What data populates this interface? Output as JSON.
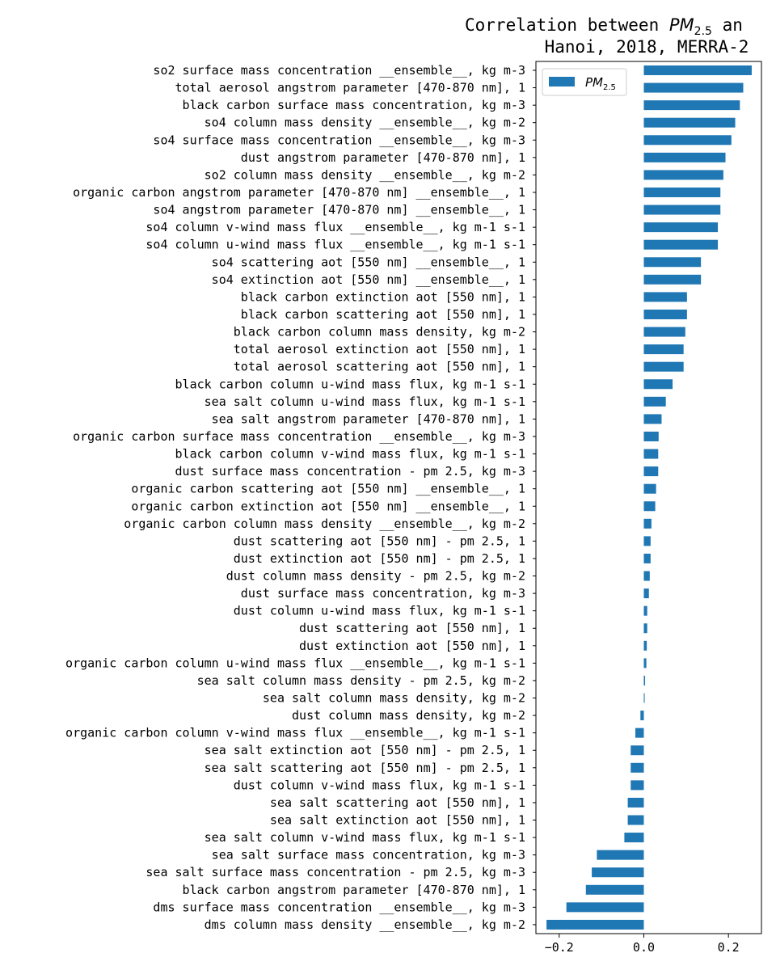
{
  "chart_data": {
    "type": "bar",
    "orientation": "horizontal",
    "title": {
      "line1_prefix": "Correlation between ",
      "line1_var": "PM",
      "line1_sub": "2.5",
      "line1_suffix": " an",
      "line2": "Hanoi, 2018, MERRA-2"
    },
    "xlabel": "",
    "ylabel": "",
    "xlim": [
      -0.255,
      0.278
    ],
    "x_ticks": [
      {
        "value": -0.2,
        "label": "−0.2"
      },
      {
        "value": 0.0,
        "label": "0.0"
      },
      {
        "value": 0.2,
        "label": "0.2"
      }
    ],
    "grid": false,
    "legend": {
      "position": "top-left-of-axes",
      "entries": [
        {
          "var": "PM",
          "sub": "2.5"
        }
      ]
    },
    "colors": {
      "bar": "#1f77b4"
    },
    "categories": [
      "so2 surface mass concentration __ensemble__, kg m-3",
      "total aerosol angstrom parameter [470-870 nm], 1",
      "black carbon surface mass concentration, kg m-3",
      "so4 column mass density __ensemble__, kg m-2",
      "so4 surface mass concentration __ensemble__, kg m-3",
      "dust angstrom parameter [470-870 nm], 1",
      "so2 column mass density __ensemble__, kg m-2",
      "organic carbon angstrom parameter [470-870 nm] __ensemble__, 1",
      "so4 angstrom parameter [470-870 nm] __ensemble__, 1",
      "so4 column v-wind mass flux __ensemble__, kg m-1 s-1",
      "so4 column u-wind mass flux __ensemble__, kg m-1 s-1",
      "so4 scattering aot [550 nm] __ensemble__, 1",
      "so4 extinction aot [550 nm] __ensemble__, 1",
      "black carbon extinction aot [550 nm], 1",
      "black carbon scattering aot [550 nm], 1",
      "black carbon column mass density, kg m-2",
      "total aerosol extinction aot [550 nm], 1",
      "total aerosol scattering aot [550 nm], 1",
      "black carbon column u-wind mass flux, kg m-1 s-1",
      "sea salt column u-wind mass flux, kg m-1 s-1",
      "sea salt angstrom parameter [470-870 nm], 1",
      "organic carbon surface mass concentration __ensemble__, kg m-3",
      "black carbon column v-wind mass flux, kg m-1 s-1",
      "dust surface mass concentration - pm 2.5, kg m-3",
      "organic carbon scattering aot [550 nm] __ensemble__, 1",
      "organic carbon extinction aot [550 nm] __ensemble__, 1",
      "organic carbon column mass density __ensemble__, kg m-2",
      "dust scattering aot [550 nm] - pm 2.5, 1",
      "dust extinction aot [550 nm] - pm 2.5, 1",
      "dust column mass density - pm 2.5, kg m-2",
      "dust surface mass concentration, kg m-3",
      "dust column u-wind mass flux, kg m-1 s-1",
      "dust scattering aot [550 nm], 1",
      "dust extinction aot [550 nm], 1",
      "organic carbon column u-wind mass flux __ensemble__, kg m-1 s-1",
      "sea salt column mass density - pm 2.5, kg m-2",
      "sea salt column mass density, kg m-2",
      "dust column mass density, kg m-2",
      "organic carbon column v-wind mass flux __ensemble__, kg m-1 s-1",
      "sea salt extinction aot [550 nm] - pm 2.5, 1",
      "sea salt scattering aot [550 nm] - pm 2.5, 1",
      "dust column v-wind mass flux, kg m-1 s-1",
      "sea salt scattering aot [550 nm], 1",
      "sea salt extinction aot [550 nm], 1",
      "sea salt column v-wind mass flux, kg m-1 s-1",
      "sea salt surface mass concentration, kg m-3",
      "sea salt surface mass concentration - pm 2.5, kg m-3",
      "black carbon angstrom parameter [470-870 nm], 1",
      "dms surface mass concentration __ensemble__, kg m-3",
      "dms column mass density __ensemble__, kg m-2"
    ],
    "series": [
      {
        "name": "PM2.5",
        "values": [
          0.255,
          0.235,
          0.227,
          0.216,
          0.207,
          0.193,
          0.188,
          0.181,
          0.181,
          0.175,
          0.175,
          0.135,
          0.135,
          0.102,
          0.102,
          0.098,
          0.094,
          0.094,
          0.068,
          0.052,
          0.042,
          0.035,
          0.034,
          0.034,
          0.029,
          0.027,
          0.018,
          0.016,
          0.016,
          0.014,
          0.012,
          0.008,
          0.008,
          0.007,
          0.006,
          0.003,
          0.002,
          -0.008,
          -0.02,
          -0.031,
          -0.031,
          -0.031,
          -0.038,
          -0.038,
          -0.046,
          -0.111,
          -0.123,
          -0.137,
          -0.183,
          -0.23
        ]
      }
    ]
  }
}
